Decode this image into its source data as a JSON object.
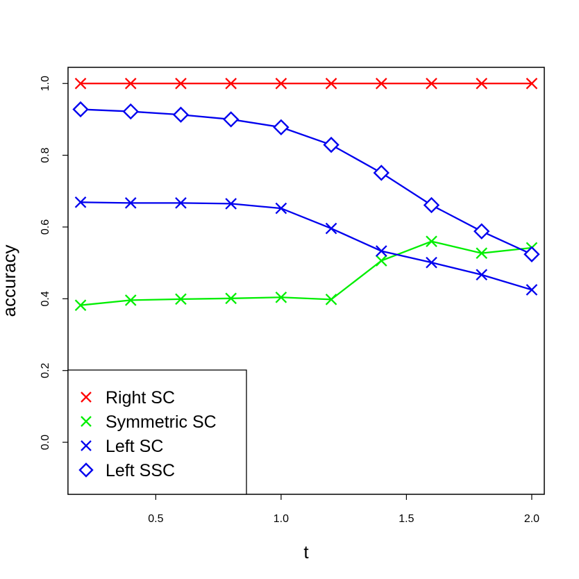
{
  "chart_data": {
    "type": "line",
    "title": "",
    "xlabel": "t",
    "ylabel": "accuracy",
    "xlim": [
      0.15,
      2.05
    ],
    "ylim": [
      -0.145,
      1.045
    ],
    "x_ticks": [
      0.5,
      1.0,
      1.5,
      2.0
    ],
    "x_tick_labels": [
      "0.5",
      "1.0",
      "1.5",
      "2.0"
    ],
    "y_ticks": [
      0.0,
      0.2,
      0.4,
      0.6,
      0.8,
      1.0
    ],
    "y_tick_labels": [
      "0.0",
      "0.2",
      "0.4",
      "0.6",
      "0.8",
      "1.0"
    ],
    "grid": false,
    "legend_position": "bottom-left",
    "x": [
      0.2,
      0.4,
      0.6,
      0.8,
      1.0,
      1.2,
      1.4,
      1.6,
      1.8,
      2.0
    ],
    "series": [
      {
        "name": "Right SC",
        "color": "#ff0000",
        "marker": "x",
        "values": [
          1.0,
          1.0,
          1.0,
          1.0,
          1.0,
          1.0,
          1.0,
          1.0,
          1.0,
          1.0
        ]
      },
      {
        "name": "Symmetric SC",
        "color": "#00ee00",
        "marker": "x",
        "values": [
          0.382,
          0.396,
          0.399,
          0.401,
          0.404,
          0.398,
          0.506,
          0.56,
          0.527,
          0.542
        ]
      },
      {
        "name": "Left SC",
        "color": "#0000ee",
        "marker": "x",
        "values": [
          0.669,
          0.667,
          0.667,
          0.665,
          0.652,
          0.596,
          0.533,
          0.501,
          0.467,
          0.425
        ]
      },
      {
        "name": "Left SSC",
        "color": "#0000ee",
        "marker": "diamond",
        "values": [
          0.928,
          0.922,
          0.913,
          0.9,
          0.878,
          0.829,
          0.751,
          0.661,
          0.588,
          0.524
        ]
      }
    ]
  }
}
